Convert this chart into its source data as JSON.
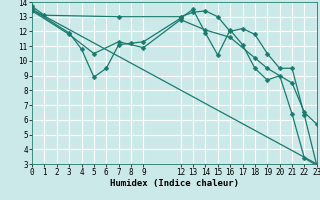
{
  "background_color": "#cce9e9",
  "grid_color": "#ffffff",
  "line_color": "#1a7a6e",
  "xlabel": "Humidex (Indice chaleur)",
  "xlim": [
    0,
    23
  ],
  "ylim": [
    3,
    14
  ],
  "xticks": [
    0,
    1,
    2,
    3,
    4,
    5,
    6,
    7,
    8,
    9,
    12,
    13,
    14,
    15,
    16,
    17,
    18,
    19,
    20,
    21,
    22,
    23
  ],
  "yticks": [
    3,
    4,
    5,
    6,
    7,
    8,
    9,
    10,
    11,
    12,
    13,
    14
  ],
  "line1_x": [
    0,
    1,
    7,
    12,
    13,
    14,
    15,
    16,
    17,
    18,
    19,
    20,
    21,
    22,
    23
  ],
  "line1_y": [
    13.7,
    13.1,
    13.0,
    13.0,
    13.3,
    13.4,
    13.0,
    12.0,
    12.2,
    11.8,
    10.5,
    9.5,
    9.5,
    6.3,
    2.9
  ],
  "line2_x": [
    0,
    3,
    4,
    5,
    6,
    7,
    8,
    9,
    12,
    13,
    14,
    15,
    16,
    17,
    18,
    19,
    20,
    21,
    22,
    23
  ],
  "line2_y": [
    13.5,
    11.9,
    10.8,
    8.9,
    9.5,
    11.1,
    11.2,
    11.3,
    12.9,
    13.5,
    11.9,
    10.4,
    12.1,
    11.1,
    9.5,
    8.7,
    9.0,
    6.4,
    3.4,
    2.9
  ],
  "line3_x": [
    0,
    3,
    5,
    7,
    9,
    12,
    14,
    16,
    18,
    19,
    21,
    22,
    23
  ],
  "line3_y": [
    13.4,
    11.8,
    10.5,
    11.3,
    10.9,
    12.8,
    12.1,
    11.6,
    10.2,
    9.5,
    8.5,
    6.5,
    5.7
  ],
  "line4_x": [
    0,
    23
  ],
  "line4_y": [
    13.5,
    3.0
  ],
  "markersize": 2.5,
  "linewidth": 0.9,
  "font_family": "monospace",
  "tick_fontsize": 5.5,
  "xlabel_fontsize": 6.5
}
